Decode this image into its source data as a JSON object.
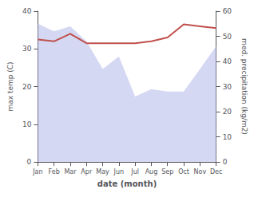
{
  "chart_data": {
    "type": "line",
    "categories": [
      "Jan",
      "Feb",
      "Mar",
      "Apr",
      "May",
      "Jun",
      "Jul",
      "Aug",
      "Sep",
      "Oct",
      "Nov",
      "Dec"
    ],
    "xlabel": "date (month)",
    "ylabel": "max temp (C)",
    "y2label": "med. precipitation (kg/m2)",
    "ylim": [
      0,
      40
    ],
    "yticks": [
      0,
      10,
      20,
      30,
      40
    ],
    "y2lim": [
      0,
      60
    ],
    "y2ticks": [
      0,
      10,
      20,
      30,
      40,
      50,
      60
    ],
    "grid": false,
    "series": [
      {
        "type": "area",
        "color": "#b0b8e8",
        "axis": "y2",
        "values": [
          55,
          52,
          54,
          48,
          37,
          42,
          26,
          29,
          28,
          28,
          37,
          46
        ]
      },
      {
        "type": "line",
        "color": "#c0504d",
        "values": [
          32.5,
          32.0,
          34.0,
          31.5,
          31.5,
          31.5,
          31.5,
          32.0,
          33.0,
          36.5,
          36.0,
          35.5
        ]
      }
    ]
  }
}
